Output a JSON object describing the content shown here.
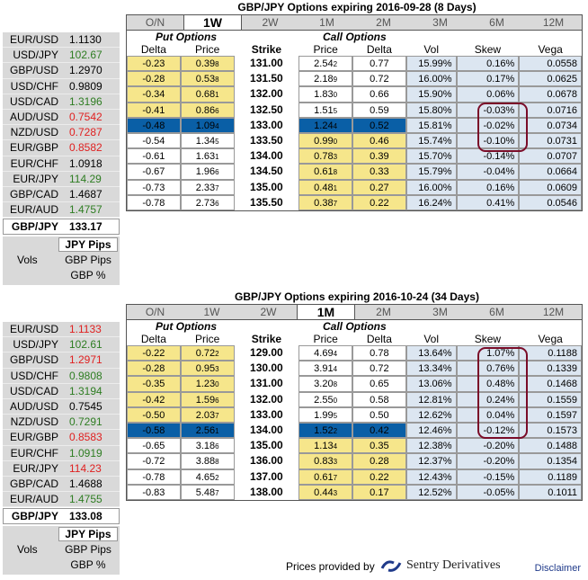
{
  "panels": [
    {
      "title": "GBP/JPY Options expiring 2016-09-28 (8 Days)",
      "active_tab": 1,
      "sidebar": [
        {
          "pair": "EUR/USD",
          "value": "1.1130",
          "trend": "neutral"
        },
        {
          "pair": "USD/JPY",
          "value": "102.67",
          "trend": "up"
        },
        {
          "pair": "GBP/USD",
          "value": "1.2970",
          "trend": "neutral"
        },
        {
          "pair": "USD/CHF",
          "value": "0.9809",
          "trend": "neutral"
        },
        {
          "pair": "USD/CAD",
          "value": "1.3196",
          "trend": "up"
        },
        {
          "pair": "AUD/USD",
          "value": "0.7542",
          "trend": "down"
        },
        {
          "pair": "NZD/USD",
          "value": "0.7287",
          "trend": "down"
        },
        {
          "pair": "EUR/GBP",
          "value": "0.8582",
          "trend": "down"
        },
        {
          "pair": "EUR/CHF",
          "value": "1.0918",
          "trend": "neutral"
        },
        {
          "pair": "EUR/JPY",
          "value": "114.29",
          "trend": "up"
        },
        {
          "pair": "GBP/CAD",
          "value": "1.4687",
          "trend": "neutral"
        },
        {
          "pair": "EUR/AUD",
          "value": "1.4757",
          "trend": "up"
        }
      ],
      "focus": {
        "pair": "GBP/JPY",
        "value": "133.17"
      },
      "rows": [
        {
          "pdelta": "-0.23",
          "pprice": "0.39",
          "pprice_sub": "8",
          "strike": "131.00",
          "cprice": "2.54",
          "cprice_sub": "2",
          "cdelta": "0.77",
          "vol": "15.99%",
          "skew": "0.16%",
          "vega": "0.0558",
          "put_hl": true,
          "call_hl": false,
          "sel": false
        },
        {
          "pdelta": "-0.28",
          "pprice": "0.53",
          "pprice_sub": "8",
          "strike": "131.50",
          "cprice": "2.18",
          "cprice_sub": "9",
          "cdelta": "0.72",
          "vol": "16.00%",
          "skew": "0.17%",
          "vega": "0.0625",
          "put_hl": true,
          "call_hl": false,
          "sel": false
        },
        {
          "pdelta": "-0.34",
          "pprice": "0.68",
          "pprice_sub": "1",
          "strike": "132.00",
          "cprice": "1.83",
          "cprice_sub": "0",
          "cdelta": "0.66",
          "vol": "15.90%",
          "skew": "0.06%",
          "vega": "0.0678",
          "put_hl": true,
          "call_hl": false,
          "sel": false
        },
        {
          "pdelta": "-0.41",
          "pprice": "0.86",
          "pprice_sub": "6",
          "strike": "132.50",
          "cprice": "1.51",
          "cprice_sub": "5",
          "cdelta": "0.59",
          "vol": "15.80%",
          "skew": "-0.03%",
          "vega": "0.0716",
          "put_hl": true,
          "call_hl": false,
          "sel": false
        },
        {
          "pdelta": "-0.48",
          "pprice": "1.09",
          "pprice_sub": "4",
          "strike": "133.00",
          "cprice": "1.24",
          "cprice_sub": "4",
          "cdelta": "0.52",
          "vol": "15.81%",
          "skew": "-0.02%",
          "vega": "0.0734",
          "put_hl": false,
          "call_hl": false,
          "sel": true
        },
        {
          "pdelta": "-0.54",
          "pprice": "1.34",
          "pprice_sub": "5",
          "strike": "133.50",
          "cprice": "0.99",
          "cprice_sub": "0",
          "cdelta": "0.46",
          "vol": "15.74%",
          "skew": "-0.10%",
          "vega": "0.0731",
          "put_hl": false,
          "call_hl": true,
          "sel": false
        },
        {
          "pdelta": "-0.61",
          "pprice": "1.63",
          "pprice_sub": "1",
          "strike": "134.00",
          "cprice": "0.78",
          "cprice_sub": "3",
          "cdelta": "0.39",
          "vol": "15.70%",
          "skew": "-0.14%",
          "vega": "0.0707",
          "put_hl": false,
          "call_hl": true,
          "sel": false
        },
        {
          "pdelta": "-0.67",
          "pprice": "1.96",
          "pprice_sub": "6",
          "strike": "134.50",
          "cprice": "0.61",
          "cprice_sub": "8",
          "cdelta": "0.33",
          "vol": "15.79%",
          "skew": "-0.04%",
          "vega": "0.0664",
          "put_hl": false,
          "call_hl": true,
          "sel": false
        },
        {
          "pdelta": "-0.73",
          "pprice": "2.33",
          "pprice_sub": "7",
          "strike": "135.00",
          "cprice": "0.48",
          "cprice_sub": "1",
          "cdelta": "0.27",
          "vol": "16.00%",
          "skew": "0.16%",
          "vega": "0.0609",
          "put_hl": false,
          "call_hl": true,
          "sel": false
        },
        {
          "pdelta": "-0.78",
          "pprice": "2.73",
          "pprice_sub": "6",
          "strike": "135.50",
          "cprice": "0.38",
          "cprice_sub": "7",
          "cdelta": "0.22",
          "vol": "16.24%",
          "skew": "0.41%",
          "vega": "0.0546",
          "put_hl": false,
          "call_hl": true,
          "sel": false
        }
      ]
    },
    {
      "title": "GBP/JPY Options expiring 2016-10-24 (34 Days)",
      "active_tab": 3,
      "sidebar": [
        {
          "pair": "EUR/USD",
          "value": "1.1133",
          "trend": "down"
        },
        {
          "pair": "USD/JPY",
          "value": "102.61",
          "trend": "up"
        },
        {
          "pair": "GBP/USD",
          "value": "1.2971",
          "trend": "down"
        },
        {
          "pair": "USD/CHF",
          "value": "0.9808",
          "trend": "up"
        },
        {
          "pair": "USD/CAD",
          "value": "1.3194",
          "trend": "up"
        },
        {
          "pair": "AUD/USD",
          "value": "0.7545",
          "trend": "neutral"
        },
        {
          "pair": "NZD/USD",
          "value": "0.7291",
          "trend": "up"
        },
        {
          "pair": "EUR/GBP",
          "value": "0.8583",
          "trend": "down"
        },
        {
          "pair": "EUR/CHF",
          "value": "1.0919",
          "trend": "up"
        },
        {
          "pair": "EUR/JPY",
          "value": "114.23",
          "trend": "down"
        },
        {
          "pair": "GBP/CAD",
          "value": "1.4688",
          "trend": "neutral"
        },
        {
          "pair": "EUR/AUD",
          "value": "1.4755",
          "trend": "up"
        }
      ],
      "focus": {
        "pair": "GBP/JPY",
        "value": "133.08"
      },
      "rows": [
        {
          "pdelta": "-0.22",
          "pprice": "0.72",
          "pprice_sub": "2",
          "strike": "129.00",
          "cprice": "4.69",
          "cprice_sub": "4",
          "cdelta": "0.78",
          "vol": "13.64%",
          "skew": "1.07%",
          "vega": "0.1188",
          "put_hl": true,
          "call_hl": false,
          "sel": false
        },
        {
          "pdelta": "-0.28",
          "pprice": "0.95",
          "pprice_sub": "3",
          "strike": "130.00",
          "cprice": "3.91",
          "cprice_sub": "4",
          "cdelta": "0.72",
          "vol": "13.34%",
          "skew": "0.76%",
          "vega": "0.1339",
          "put_hl": true,
          "call_hl": false,
          "sel": false
        },
        {
          "pdelta": "-0.35",
          "pprice": "1.23",
          "pprice_sub": "0",
          "strike": "131.00",
          "cprice": "3.20",
          "cprice_sub": "8",
          "cdelta": "0.65",
          "vol": "13.06%",
          "skew": "0.48%",
          "vega": "0.1468",
          "put_hl": true,
          "call_hl": false,
          "sel": false
        },
        {
          "pdelta": "-0.42",
          "pprice": "1.59",
          "pprice_sub": "6",
          "strike": "132.00",
          "cprice": "2.55",
          "cprice_sub": "0",
          "cdelta": "0.58",
          "vol": "12.81%",
          "skew": "0.24%",
          "vega": "0.1559",
          "put_hl": true,
          "call_hl": false,
          "sel": false
        },
        {
          "pdelta": "-0.50",
          "pprice": "2.03",
          "pprice_sub": "7",
          "strike": "133.00",
          "cprice": "1.99",
          "cprice_sub": "5",
          "cdelta": "0.50",
          "vol": "12.62%",
          "skew": "0.04%",
          "vega": "0.1597",
          "put_hl": true,
          "call_hl": false,
          "sel": false
        },
        {
          "pdelta": "-0.58",
          "pprice": "2.56",
          "pprice_sub": "1",
          "strike": "134.00",
          "cprice": "1.52",
          "cprice_sub": "2",
          "cdelta": "0.42",
          "vol": "12.46%",
          "skew": "-0.12%",
          "vega": "0.1573",
          "put_hl": false,
          "call_hl": false,
          "sel": true
        },
        {
          "pdelta": "-0.65",
          "pprice": "3.18",
          "pprice_sub": "6",
          "strike": "135.00",
          "cprice": "1.13",
          "cprice_sub": "4",
          "cdelta": "0.35",
          "vol": "12.38%",
          "skew": "-0.20%",
          "vega": "0.1488",
          "put_hl": false,
          "call_hl": true,
          "sel": false
        },
        {
          "pdelta": "-0.72",
          "pprice": "3.88",
          "pprice_sub": "8",
          "strike": "136.00",
          "cprice": "0.83",
          "cprice_sub": "3",
          "cdelta": "0.28",
          "vol": "12.37%",
          "skew": "-0.20%",
          "vega": "0.1354",
          "put_hl": false,
          "call_hl": true,
          "sel": false
        },
        {
          "pdelta": "-0.78",
          "pprice": "4.65",
          "pprice_sub": "2",
          "strike": "137.00",
          "cprice": "0.61",
          "cprice_sub": "7",
          "cdelta": "0.22",
          "vol": "12.43%",
          "skew": "-0.15%",
          "vega": "0.1189",
          "put_hl": false,
          "call_hl": true,
          "sel": false
        },
        {
          "pdelta": "-0.83",
          "pprice": "5.48",
          "pprice_sub": "7",
          "strike": "138.00",
          "cprice": "0.44",
          "cprice_sub": "3",
          "cdelta": "0.17",
          "vol": "12.52%",
          "skew": "-0.05%",
          "vega": "0.1011",
          "put_hl": false,
          "call_hl": true,
          "sel": false
        }
      ]
    }
  ],
  "tabs": [
    "O/N",
    "1W",
    "2W",
    "1M",
    "2M",
    "3M",
    "6M",
    "12M"
  ],
  "captions": {
    "put": "Put Options",
    "call": "Call Options"
  },
  "headers": {
    "delta": "Delta",
    "price": "Price",
    "strike": "Strike",
    "vol": "Vol",
    "skew": "Skew",
    "vega": "Vega"
  },
  "sub_table": {
    "header": "JPY Pips",
    "row_label": "Vols",
    "row1": "GBP Pips",
    "row2": "GBP %"
  },
  "footer": {
    "provided": "Prices provided by",
    "brand": "Sentry Derivatives",
    "disclaimer": "Disclaimer"
  },
  "colors": {
    "up": "#2e7d22",
    "down": "#e02020",
    "selected_row": "#0a5fa6",
    "highlight_yellow": "#f6e68b",
    "calc_bg": "#dce6f1",
    "skew_box": "#7a0c28"
  }
}
